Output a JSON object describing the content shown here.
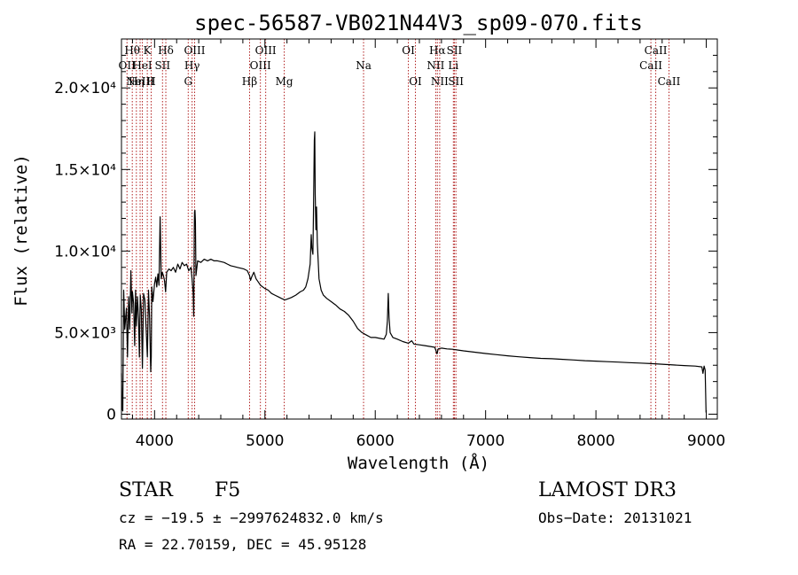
{
  "chart_data": {
    "type": "line",
    "title": "spec-56587-VB021N44V3_sp09-070.fits",
    "xlabel": "Wavelength (Å)",
    "ylabel": "Flux (relative)",
    "xlim": [
      3700,
      9100
    ],
    "ylim": [
      -300,
      23000
    ],
    "x_ticks": [
      {
        "value": 4000,
        "label": "4000"
      },
      {
        "value": 5000,
        "label": "5000"
      },
      {
        "value": 6000,
        "label": "6000"
      },
      {
        "value": 7000,
        "label": "7000"
      },
      {
        "value": 8000,
        "label": "8000"
      },
      {
        "value": 9000,
        "label": "9000"
      }
    ],
    "y_ticks": [
      {
        "value": 0,
        "label": "0"
      },
      {
        "value": 5000,
        "label": "5.0×10³"
      },
      {
        "value": 10000,
        "label": "1.0×10⁴"
      },
      {
        "value": 15000,
        "label": "1.5×10⁴"
      },
      {
        "value": 20000,
        "label": "2.0×10⁴"
      }
    ],
    "series": [
      {
        "name": "flux",
        "points": [
          [
            3700,
            2500
          ],
          [
            3705,
            400
          ],
          [
            3712,
            200
          ],
          [
            3720,
            7600
          ],
          [
            3730,
            5200
          ],
          [
            3745,
            6500
          ],
          [
            3755,
            3500
          ],
          [
            3765,
            7200
          ],
          [
            3775,
            5200
          ],
          [
            3785,
            8800
          ],
          [
            3795,
            6200
          ],
          [
            3800,
            7500
          ],
          [
            3810,
            6800
          ],
          [
            3820,
            4200
          ],
          [
            3828,
            7600
          ],
          [
            3835,
            5400
          ],
          [
            3845,
            7200
          ],
          [
            3855,
            5800
          ],
          [
            3862,
            3500
          ],
          [
            3870,
            7300
          ],
          [
            3880,
            6400
          ],
          [
            3890,
            2800
          ],
          [
            3900,
            7400
          ],
          [
            3912,
            7000
          ],
          [
            3925,
            5000
          ],
          [
            3935,
            3500
          ],
          [
            3945,
            7600
          ],
          [
            3955,
            5900
          ],
          [
            3965,
            2600
          ],
          [
            3970,
            3500
          ],
          [
            3975,
            7800
          ],
          [
            3985,
            6900
          ],
          [
            4000,
            8000
          ],
          [
            4010,
            8400
          ],
          [
            4020,
            7800
          ],
          [
            4030,
            8600
          ],
          [
            4040,
            7900
          ],
          [
            4050,
            12100
          ],
          [
            4060,
            8300
          ],
          [
            4070,
            8700
          ],
          [
            4080,
            8500
          ],
          [
            4090,
            8200
          ],
          [
            4100,
            7500
          ],
          [
            4110,
            8700
          ],
          [
            4130,
            8900
          ],
          [
            4150,
            8800
          ],
          [
            4170,
            9000
          ],
          [
            4190,
            8700
          ],
          [
            4210,
            9200
          ],
          [
            4230,
            8900
          ],
          [
            4250,
            9300
          ],
          [
            4270,
            9100
          ],
          [
            4290,
            9200
          ],
          [
            4310,
            8800
          ],
          [
            4330,
            9000
          ],
          [
            4340,
            8300
          ],
          [
            4350,
            7400
          ],
          [
            4355,
            6000
          ],
          [
            4360,
            11200
          ],
          [
            4362,
            12400
          ],
          [
            4366,
            12500
          ],
          [
            4370,
            11800
          ],
          [
            4375,
            8500
          ],
          [
            4390,
            9400
          ],
          [
            4420,
            9300
          ],
          [
            4450,
            9500
          ],
          [
            4480,
            9400
          ],
          [
            4510,
            9500
          ],
          [
            4540,
            9400
          ],
          [
            4570,
            9400
          ],
          [
            4600,
            9350
          ],
          [
            4630,
            9300
          ],
          [
            4660,
            9200
          ],
          [
            4690,
            9100
          ],
          [
            4720,
            9050
          ],
          [
            4750,
            9000
          ],
          [
            4780,
            8950
          ],
          [
            4810,
            8900
          ],
          [
            4840,
            8800
          ],
          [
            4860,
            8500
          ],
          [
            4870,
            8200
          ],
          [
            4880,
            8400
          ],
          [
            4900,
            8700
          ],
          [
            4920,
            8300
          ],
          [
            4940,
            8100
          ],
          [
            4960,
            7900
          ],
          [
            4980,
            7800
          ],
          [
            5000,
            7700
          ],
          [
            5030,
            7600
          ],
          [
            5060,
            7400
          ],
          [
            5090,
            7300
          ],
          [
            5120,
            7200
          ],
          [
            5150,
            7100
          ],
          [
            5180,
            7000
          ],
          [
            5200,
            7050
          ],
          [
            5240,
            7150
          ],
          [
            5280,
            7300
          ],
          [
            5320,
            7500
          ],
          [
            5350,
            7600
          ],
          [
            5370,
            7800
          ],
          [
            5390,
            8300
          ],
          [
            5410,
            9200
          ],
          [
            5420,
            11000
          ],
          [
            5425,
            10200
          ],
          [
            5435,
            9800
          ],
          [
            5440,
            12200
          ],
          [
            5448,
            16800
          ],
          [
            5452,
            17300
          ],
          [
            5456,
            13500
          ],
          [
            5462,
            11300
          ],
          [
            5468,
            12700
          ],
          [
            5475,
            10500
          ],
          [
            5490,
            8300
          ],
          [
            5510,
            7600
          ],
          [
            5530,
            7300
          ],
          [
            5560,
            7100
          ],
          [
            5600,
            6900
          ],
          [
            5640,
            6700
          ],
          [
            5680,
            6450
          ],
          [
            5720,
            6300
          ],
          [
            5760,
            6050
          ],
          [
            5800,
            5700
          ],
          [
            5840,
            5250
          ],
          [
            5880,
            5000
          ],
          [
            5920,
            4850
          ],
          [
            5960,
            4700
          ],
          [
            6000,
            4700
          ],
          [
            6040,
            4650
          ],
          [
            6080,
            4600
          ],
          [
            6100,
            4900
          ],
          [
            6110,
            5700
          ],
          [
            6118,
            7400
          ],
          [
            6125,
            5900
          ],
          [
            6135,
            5000
          ],
          [
            6160,
            4700
          ],
          [
            6200,
            4600
          ],
          [
            6250,
            4450
          ],
          [
            6300,
            4350
          ],
          [
            6330,
            4500
          ],
          [
            6350,
            4300
          ],
          [
            6400,
            4250
          ],
          [
            6450,
            4200
          ],
          [
            6500,
            4150
          ],
          [
            6540,
            4100
          ],
          [
            6560,
            3700
          ],
          [
            6570,
            4000
          ],
          [
            6600,
            4050
          ],
          [
            6650,
            4000
          ],
          [
            6700,
            3980
          ],
          [
            6750,
            3930
          ],
          [
            6800,
            3880
          ],
          [
            6900,
            3800
          ],
          [
            7000,
            3720
          ],
          [
            7100,
            3650
          ],
          [
            7200,
            3580
          ],
          [
            7300,
            3520
          ],
          [
            7400,
            3470
          ],
          [
            7500,
            3420
          ],
          [
            7600,
            3400
          ],
          [
            7700,
            3360
          ],
          [
            7800,
            3320
          ],
          [
            7900,
            3280
          ],
          [
            8000,
            3250
          ],
          [
            8100,
            3220
          ],
          [
            8200,
            3190
          ],
          [
            8300,
            3160
          ],
          [
            8400,
            3130
          ],
          [
            8500,
            3100
          ],
          [
            8600,
            3060
          ],
          [
            8700,
            3020
          ],
          [
            8800,
            2980
          ],
          [
            8900,
            2950
          ],
          [
            8960,
            2900
          ],
          [
            8970,
            2500
          ],
          [
            8980,
            2950
          ],
          [
            8990,
            2700
          ],
          [
            8998,
            100
          ]
        ]
      }
    ],
    "lines": [
      {
        "x": 3750,
        "label": "OII",
        "row": 2
      },
      {
        "x": 3798,
        "label": "Hθ",
        "row": 1
      },
      {
        "x": 3835,
        "label": "Hη",
        "row": 3
      },
      {
        "x": 3869,
        "label": "NeIII",
        "row": 3
      },
      {
        "x": 3889,
        "label": "HeI",
        "row": 2
      },
      {
        "x": 3934,
        "label": "K",
        "row": 1
      },
      {
        "x": 3969,
        "label": "H",
        "row": 3
      },
      {
        "x": 4072,
        "label": "SII",
        "row": 2
      },
      {
        "x": 4102,
        "label": "Hδ",
        "row": 1
      },
      {
        "x": 4305,
        "label": "G",
        "row": 3
      },
      {
        "x": 4340,
        "label": "Hγ",
        "row": 2
      },
      {
        "x": 4363,
        "label": "OIII",
        "row": 1
      },
      {
        "x": 4861,
        "label": "Hβ",
        "row": 3
      },
      {
        "x": 4959,
        "label": "OIII",
        "row": 2
      },
      {
        "x": 5007,
        "label": "OIII",
        "row": 1
      },
      {
        "x": 5175,
        "label": "Mg",
        "row": 3
      },
      {
        "x": 5894,
        "label": "Na",
        "row": 2
      },
      {
        "x": 6300,
        "label": "OI",
        "row": 1
      },
      {
        "x": 6364,
        "label": "OI",
        "row": 3
      },
      {
        "x": 6548,
        "label": "NII",
        "row": 2
      },
      {
        "x": 6563,
        "label": "Hα",
        "row": 1
      },
      {
        "x": 6584,
        "label": "NII",
        "row": 3
      },
      {
        "x": 6708,
        "label": "Li",
        "row": 2
      },
      {
        "x": 6717,
        "label": "SII",
        "row": 1
      },
      {
        "x": 6731,
        "label": "SII",
        "row": 3
      },
      {
        "x": 8498,
        "label": "CaII",
        "row": 2
      },
      {
        "x": 8542,
        "label": "CaII",
        "row": 1
      },
      {
        "x": 8662,
        "label": "CaII",
        "row": 3
      }
    ]
  },
  "info": {
    "class_label": "STAR",
    "subclass": "F5",
    "survey": "LAMOST DR3",
    "cz_text": "cz = −19.5 ± −2997624832.0 km/s",
    "obs_date_text": "Obs−Date: 20131021",
    "radec_text": "RA =  22.70159, DEC =  45.95128"
  },
  "colors": {
    "line_marker": "#b22222",
    "spectrum": "#000000",
    "axis": "#000000"
  }
}
